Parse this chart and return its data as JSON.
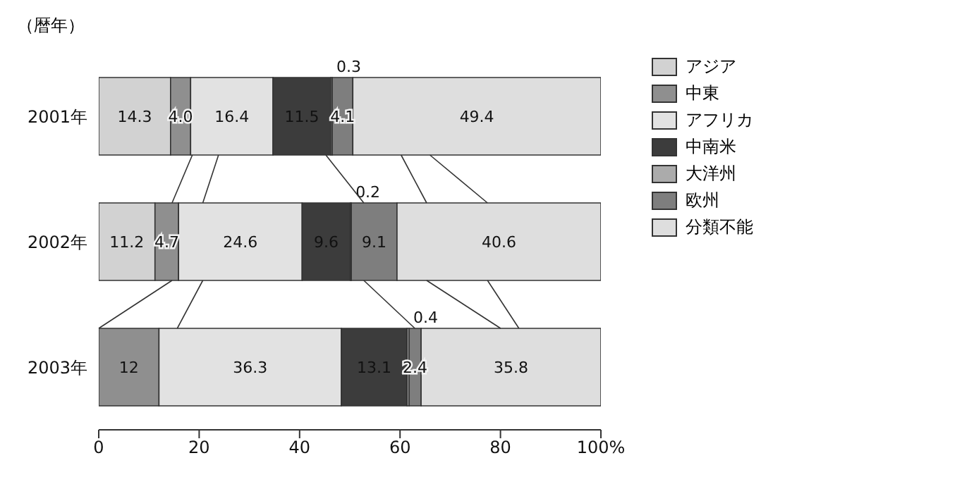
{
  "chart_data": {
    "type": "bar",
    "orientation": "horizontal",
    "stacked": true,
    "ylabel": "（暦年）",
    "categories": [
      "2001年",
      "2002年",
      "2003年"
    ],
    "series": [
      {
        "name": "アジア",
        "color": "#d2d2d2",
        "values": [
          14.3,
          11.2,
          0
        ],
        "value_labels": [
          "14.3",
          "11.2",
          null
        ]
      },
      {
        "name": "中東",
        "color": "#8f8f8f",
        "values": [
          4.0,
          4.7,
          12
        ],
        "value_labels": [
          "4.0",
          "4.7",
          "12"
        ]
      },
      {
        "name": "アフリカ",
        "color": "#e2e2e2",
        "values": [
          16.4,
          24.6,
          36.3
        ],
        "value_labels": [
          "16.4",
          "24.6",
          "36.3"
        ]
      },
      {
        "name": "中南米",
        "color": "#3c3c3c",
        "values": [
          11.5,
          9.6,
          13.1
        ],
        "value_labels": [
          "11.5",
          "9.6",
          "13.1"
        ]
      },
      {
        "name": "大洋州",
        "color": "#ababab",
        "values": [
          0.3,
          0.2,
          0.4
        ],
        "value_labels": [
          "0.3",
          "0.2",
          "0.4"
        ]
      },
      {
        "name": "欧州",
        "color": "#7e7e7e",
        "values": [
          4.1,
          9.1,
          2.4
        ],
        "value_labels": [
          "4.1",
          "9.1",
          "2.4"
        ]
      },
      {
        "name": "分類不能",
        "color": "#dedede",
        "values": [
          49.4,
          40.6,
          35.8
        ],
        "value_labels": [
          "49.4",
          "40.6",
          "35.8"
        ]
      }
    ],
    "xlim": [
      0,
      100
    ],
    "xticks": [
      0,
      20,
      40,
      60,
      80,
      {
        "value": 100,
        "label": "100%"
      }
    ],
    "grid": false,
    "legend": "top right"
  }
}
